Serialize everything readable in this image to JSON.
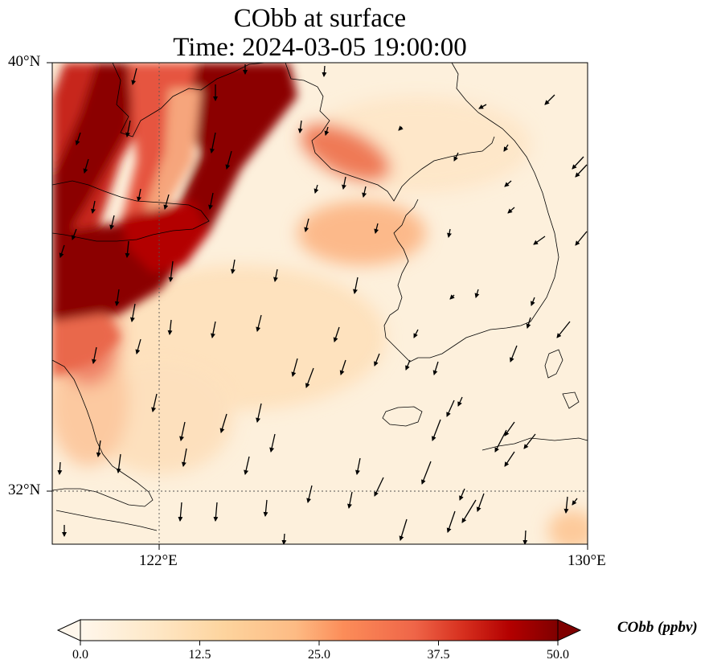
{
  "title": {
    "line1": "CObb at surface",
    "line2": "Time: 2024-03-05 19:00:00"
  },
  "axes": {
    "lat_labels": [
      "40°N",
      "32°N"
    ],
    "lon_labels": [
      "122°E",
      "130°E"
    ],
    "lat_range": [
      31,
      40
    ],
    "lon_range": [
      120,
      130
    ],
    "gridlines": "dotted at 32°N and 122°E"
  },
  "colorbar": {
    "label": "CObb (ppbv)",
    "colormap": "OrRd",
    "ticks": [
      "0.0",
      "12.5",
      "25.0",
      "37.5",
      "50.0"
    ],
    "range": [
      0,
      50
    ],
    "extend": "both"
  },
  "colors": {
    "low": "#fff7ec",
    "high": "#7f0000"
  }
}
